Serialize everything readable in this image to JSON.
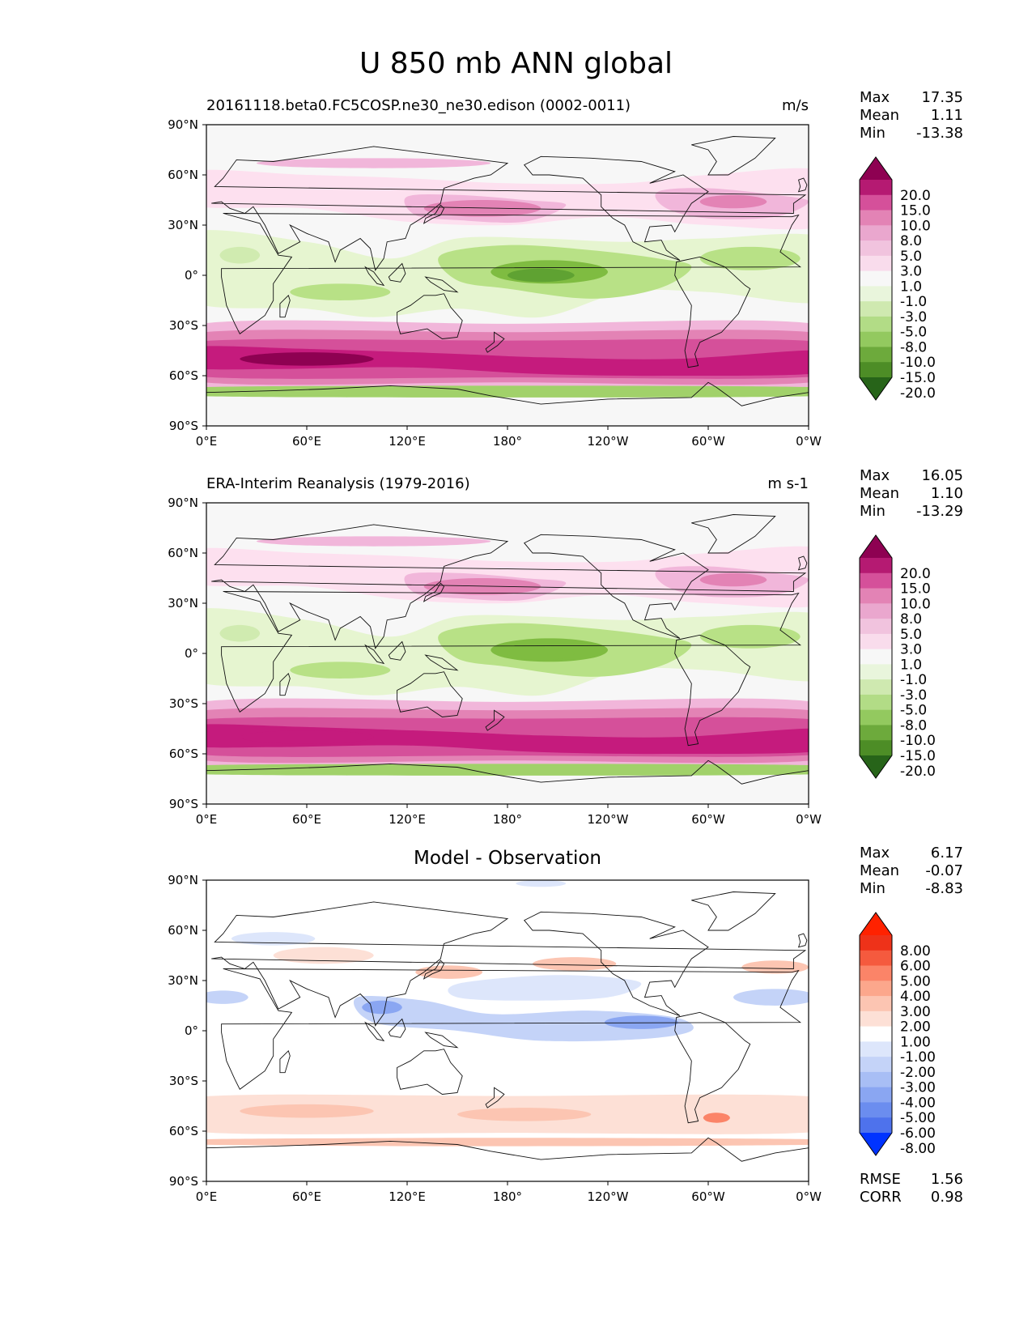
{
  "figure_title": "U 850 mb ANN global",
  "x_ticks": [
    "0°E",
    "60°E",
    "120°E",
    "180°",
    "120°W",
    "60°W",
    "0°W"
  ],
  "y_ticks": [
    "90°N",
    "60°N",
    "30°N",
    "0°",
    "30°S",
    "60°S",
    "90°S"
  ],
  "colors": {
    "coast": "#111111",
    "pos_scale": [
      "#f7f7f7",
      "#fde0ef",
      "#f9cde4",
      "#f1b6da",
      "#e9a3c9",
      "#e383b5",
      "#d5509a",
      "#c51b7d",
      "#8e0152"
    ],
    "neg_scale": [
      "#f7f7f7",
      "#e6f5d0",
      "#d0ebb0",
      "#b8e186",
      "#a1d16a",
      "#7fbc41",
      "#5fa232",
      "#4d9221",
      "#276419"
    ],
    "diff_pos": [
      "#ffffff",
      "#fde0d6",
      "#fcc5b2",
      "#fca78c",
      "#fb8468",
      "#f55a3e",
      "#ee3219",
      "#ff2200"
    ],
    "diff_neg": [
      "#ffffff",
      "#dde6fb",
      "#c4d3f8",
      "#a8bef5",
      "#8aa6f2",
      "#6b8def",
      "#4e72ec",
      "#0033ff"
    ]
  },
  "panels": [
    {
      "id": "model",
      "title_left": "20161118.beta0.FC5COSP.ne30_ne30.edison (0002-0011)",
      "title_right": "m/s",
      "title_center": "",
      "stats": [
        {
          "label": "Max",
          "value": "17.35"
        },
        {
          "label": "Mean",
          "value": "1.11"
        },
        {
          "label": "Min",
          "value": "-13.38"
        }
      ],
      "colorbar_labels": [
        "20.0",
        "15.0",
        "10.0",
        "8.0",
        "5.0",
        "3.0",
        "1.0",
        "-1.0",
        "-3.0",
        "-5.0",
        "-8.0",
        "-10.0",
        "-15.0",
        "-20.0"
      ],
      "colorbar_colors": [
        "#8e0152",
        "#b51a72",
        "#d5509a",
        "#e383b5",
        "#eaa7ce",
        "#f1c3de",
        "#f9dcec",
        "#f7f7f7",
        "#e9f5dc",
        "#cfe9b0",
        "#b2dc86",
        "#93c95f",
        "#6daa3c",
        "#4d8d26",
        "#276419"
      ]
    },
    {
      "id": "obs",
      "title_left": "ERA-Interim Reanalysis (1979-2016)",
      "title_right": "m s-1",
      "title_center": "",
      "stats": [
        {
          "label": "Max",
          "value": "16.05"
        },
        {
          "label": "Mean",
          "value": "1.10"
        },
        {
          "label": "Min",
          "value": "-13.29"
        }
      ],
      "colorbar_labels": [
        "20.0",
        "15.0",
        "10.0",
        "8.0",
        "5.0",
        "3.0",
        "1.0",
        "-1.0",
        "-3.0",
        "-5.0",
        "-8.0",
        "-10.0",
        "-15.0",
        "-20.0"
      ],
      "colorbar_colors": [
        "#8e0152",
        "#b51a72",
        "#d5509a",
        "#e383b5",
        "#eaa7ce",
        "#f1c3de",
        "#f9dcec",
        "#f7f7f7",
        "#e9f5dc",
        "#cfe9b0",
        "#b2dc86",
        "#93c95f",
        "#6daa3c",
        "#4d8d26",
        "#276419"
      ]
    },
    {
      "id": "diff",
      "title_left": "",
      "title_right": "",
      "title_center": "Model - Observation",
      "stats": [
        {
          "label": "Max",
          "value": "6.17"
        },
        {
          "label": "Mean",
          "value": "-0.07"
        },
        {
          "label": "Min",
          "value": "-8.83"
        }
      ],
      "colorbar_labels": [
        "8.00",
        "6.00",
        "5.00",
        "4.00",
        "3.00",
        "2.00",
        "1.00",
        "-1.00",
        "-2.00",
        "-3.00",
        "-4.00",
        "-5.00",
        "-6.00",
        "-8.00"
      ],
      "colorbar_colors": [
        "#ff2200",
        "#ee3219",
        "#f55a3e",
        "#fb8468",
        "#fca78c",
        "#fcc5b2",
        "#fde0d6",
        "#ffffff",
        "#dde6fb",
        "#c4d3f8",
        "#a8bef5",
        "#8aa6f2",
        "#6b8def",
        "#4e72ec",
        "#0033ff"
      ],
      "extra_stats": [
        {
          "label": "RMSE",
          "value": "1.56"
        },
        {
          "label": "CORR",
          "value": "0.98"
        }
      ]
    }
  ]
}
